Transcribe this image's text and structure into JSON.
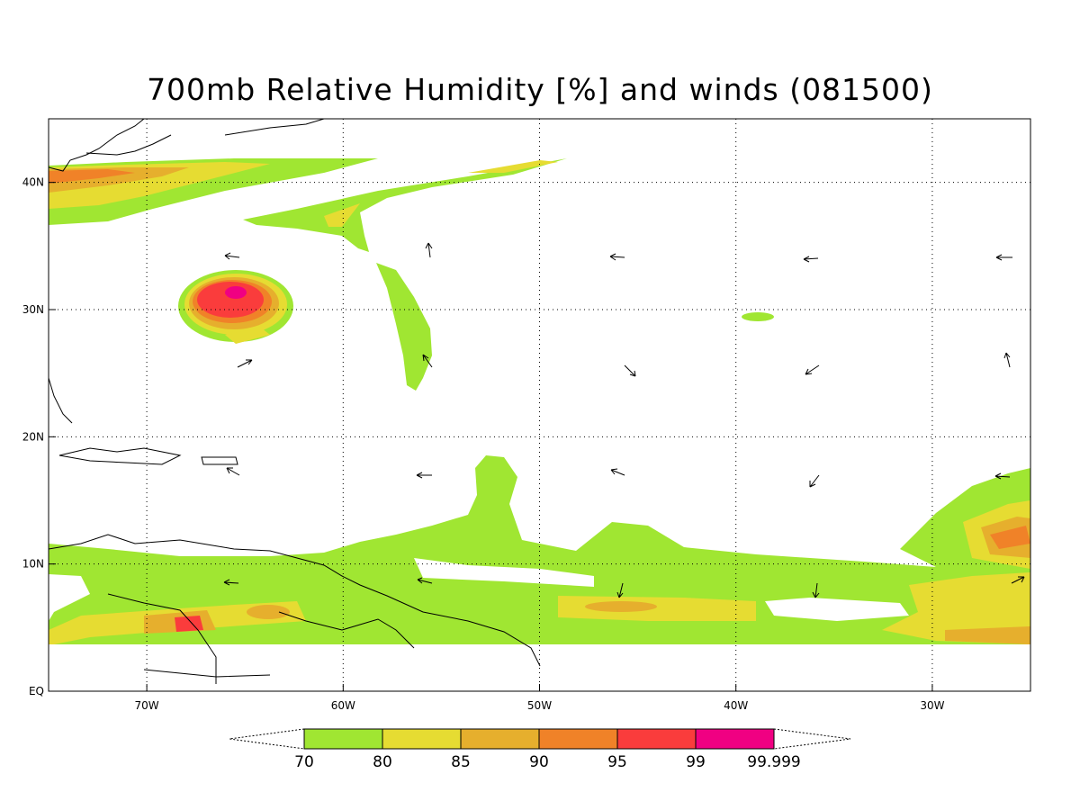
{
  "title": "700mb Relative Humidity [%] and winds (081500)",
  "map": {
    "lon_range": [
      -75,
      -25
    ],
    "lat_range": [
      0,
      45
    ],
    "lon_ticks": [
      {
        "value": -70,
        "label": "70W"
      },
      {
        "value": -60,
        "label": "60W"
      },
      {
        "value": -50,
        "label": "50W"
      },
      {
        "value": -40,
        "label": "40W"
      },
      {
        "value": -30,
        "label": "30W"
      }
    ],
    "lat_ticks": [
      {
        "value": 0,
        "label": "EQ"
      },
      {
        "value": 10,
        "label": "10N"
      },
      {
        "value": 20,
        "label": "20N"
      },
      {
        "value": 30,
        "label": "30N"
      },
      {
        "value": 40,
        "label": "40N"
      }
    ],
    "grid": "dotted"
  },
  "colorbar": {
    "levels": [
      "70",
      "80",
      "85",
      "90",
      "95",
      "99",
      "99.999"
    ],
    "colors": [
      "#a0e632",
      "#e6dc32",
      "#e6af2d",
      "#f08228",
      "#fa3c3c",
      "#f00082"
    ]
  }
}
